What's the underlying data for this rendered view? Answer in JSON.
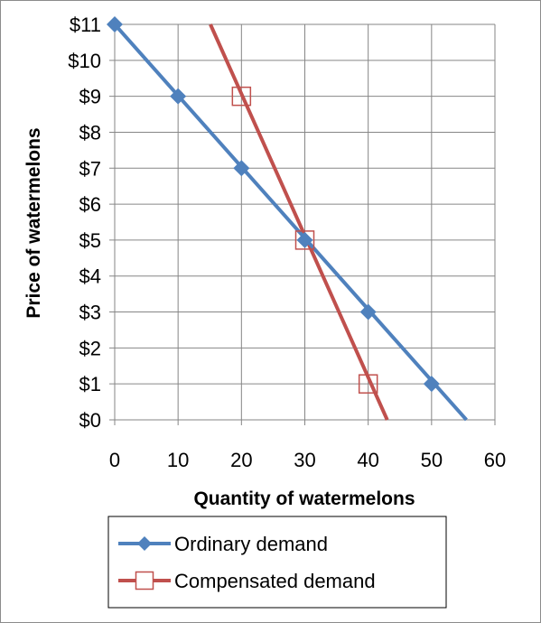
{
  "chart_data": {
    "type": "line",
    "xlabel": "Quantity of watermelons",
    "ylabel": "Price of watermelons",
    "xlim": [
      0,
      60
    ],
    "ylim": [
      0,
      11
    ],
    "xticks": [
      "0",
      "10",
      "20",
      "30",
      "40",
      "50",
      "60"
    ],
    "yticks": [
      "$0",
      "$1",
      "$2",
      "$3",
      "$4",
      "$5",
      "$6",
      "$7",
      "$8",
      "$9",
      "$10",
      "$11"
    ],
    "grid": true,
    "legend_position": "bottom",
    "series": [
      {
        "name": "Ordinary demand",
        "color": "#4f81bd",
        "marker": "diamond",
        "points": [
          [
            0,
            11
          ],
          [
            10,
            9
          ],
          [
            20,
            7
          ],
          [
            30,
            5
          ],
          [
            40,
            3
          ],
          [
            50,
            1
          ]
        ],
        "line_extent": [
          [
            0,
            11
          ],
          [
            55.5,
            0
          ]
        ]
      },
      {
        "name": "Compensated demand",
        "color": "#c0504d",
        "marker": "open-square",
        "points": [
          [
            20,
            9
          ],
          [
            30,
            5
          ],
          [
            40,
            1
          ]
        ],
        "line_extent": [
          [
            15.1,
            11
          ],
          [
            43,
            0
          ]
        ]
      }
    ]
  }
}
